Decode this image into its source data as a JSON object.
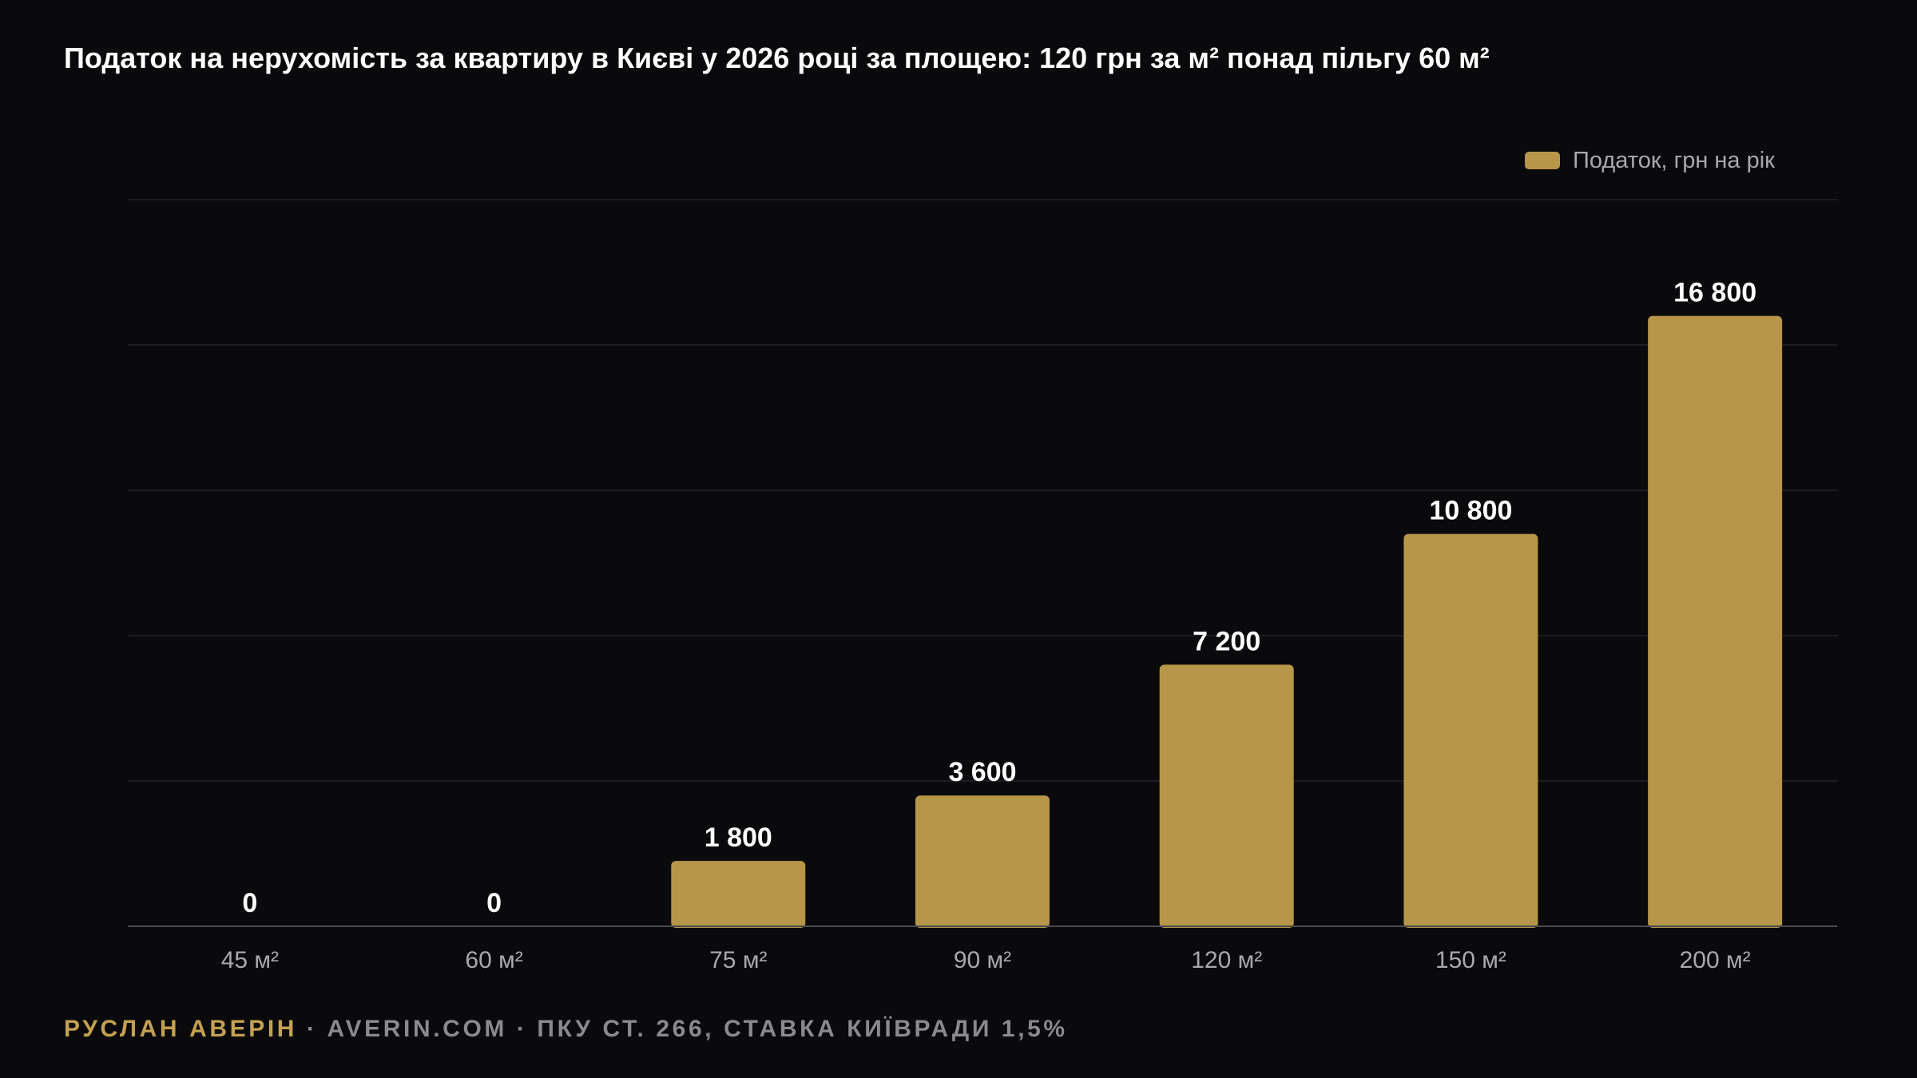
{
  "title": "Податок на нерухомість за квартиру в Києві у 2026 році за площею: 120 грн за м² понад пільгу 60 м²",
  "colors": {
    "background": "#0a0a0d",
    "bar": "#b7964a",
    "grid": "#1d1d22",
    "axis": "#4a4a50",
    "author": "#c4a052",
    "footer_text": "#8a8a8e"
  },
  "legend": {
    "label": "Податок, грн на рік"
  },
  "footer": {
    "author": "РУСЛАН АВЕРІН",
    "rest": " · AVERIN.COM · ПКУ СТ. 266, СТАВКА КИЇВРАДИ 1,5%"
  },
  "chart_data": {
    "type": "bar",
    "title": "Податок на нерухомість за квартиру в Києві у 2026 році за площею: 120 грн за м² понад пільгу 60 м²",
    "categories": [
      "45 м²",
      "60 м²",
      "75 м²",
      "90 м²",
      "120 м²",
      "150 м²",
      "200 м²"
    ],
    "series": [
      {
        "name": "Податок, грн на рік",
        "values": [
          0,
          0,
          1800,
          3600,
          7200,
          10800,
          16800
        ],
        "labels": [
          "0",
          "0",
          "1 800",
          "3 600",
          "7 200",
          "10 800",
          "16 800"
        ]
      }
    ],
    "ylim": [
      0,
      20000
    ],
    "grid": true,
    "y_tick_labels_shown": false,
    "legend_position": "top-right"
  }
}
